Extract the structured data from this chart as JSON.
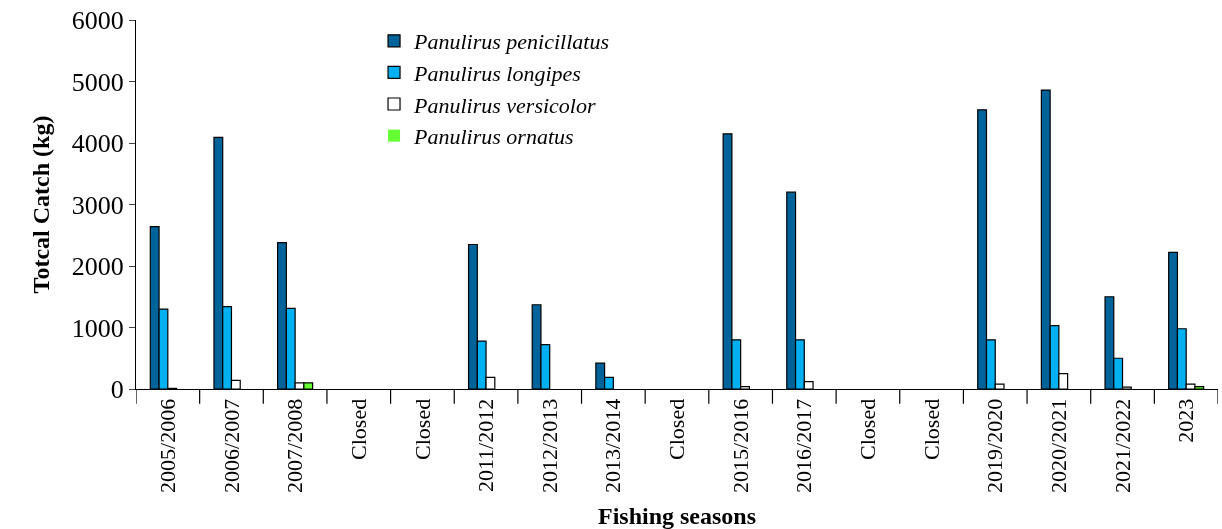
{
  "chart_data": {
    "type": "bar",
    "xlabel": "Fishing seasons",
    "ylabel": "Totcal Catch (kg)",
    "categories": [
      "2005/2006",
      "2006/2007",
      "2007/2008",
      "Closed",
      "Closed",
      "2011/2012",
      "2012/2013",
      "2013/2014",
      "Closed",
      "2015/2016",
      "2016/2017",
      "Closed",
      "Closed",
      "2019/2020",
      "2020/2021",
      "2021/2022",
      "2023"
    ],
    "series": [
      {
        "name": "Panulirus penicillatus",
        "color": "#00649a",
        "values": [
          2640,
          4090,
          2380,
          null,
          null,
          2350,
          1370,
          420,
          null,
          4150,
          3200,
          null,
          null,
          4540,
          4860,
          1500,
          2220
        ]
      },
      {
        "name": "Panulirus longipes",
        "color": "#00b0f0",
        "values": [
          1300,
          1340,
          1310,
          null,
          null,
          780,
          720,
          190,
          null,
          800,
          800,
          null,
          null,
          800,
          1030,
          500,
          980
        ]
      },
      {
        "name": "Panulirus versicolor",
        "color": "#ffffff",
        "values": [
          10,
          140,
          100,
          null,
          null,
          190,
          null,
          0,
          null,
          40,
          120,
          null,
          null,
          80,
          250,
          30,
          80
        ]
      },
      {
        "name": "Panulirus ornatus",
        "color": "#66ff33",
        "values": [
          0,
          null,
          100,
          null,
          null,
          0,
          0,
          0,
          null,
          0,
          0,
          null,
          null,
          0,
          0,
          0,
          40
        ]
      }
    ],
    "ylim": [
      0,
      6000
    ],
    "yticks": [
      0,
      1000,
      2000,
      3000,
      4000,
      5000,
      6000
    ],
    "legend": "top"
  }
}
